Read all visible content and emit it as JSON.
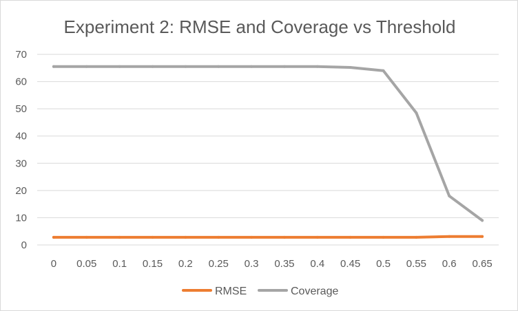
{
  "chart_data": {
    "type": "line",
    "title": "Experiment 2: RMSE and Coverage vs Threshold",
    "xlabel": "",
    "ylabel": "",
    "categories": [
      "0",
      "0.05",
      "0.1",
      "0.15",
      "0.2",
      "0.25",
      "0.3",
      "0.35",
      "0.4",
      "0.45",
      "0.5",
      "0.55",
      "0.6",
      "0.65"
    ],
    "ylim": [
      0,
      70
    ],
    "yticks": [
      "0",
      "10",
      "20",
      "30",
      "40",
      "50",
      "60",
      "70"
    ],
    "grid": true,
    "legend_position": "bottom",
    "series": [
      {
        "name": "RMSE",
        "color": "#ED7D31",
        "values": [
          2.8,
          2.8,
          2.8,
          2.8,
          2.8,
          2.8,
          2.8,
          2.8,
          2.8,
          2.8,
          2.8,
          2.8,
          3.1,
          3.1
        ]
      },
      {
        "name": "Coverage",
        "color": "#A5A5A5",
        "values": [
          65.5,
          65.5,
          65.5,
          65.5,
          65.5,
          65.5,
          65.5,
          65.5,
          65.5,
          65.2,
          64.0,
          48.5,
          18.0,
          9.0
        ]
      }
    ]
  }
}
